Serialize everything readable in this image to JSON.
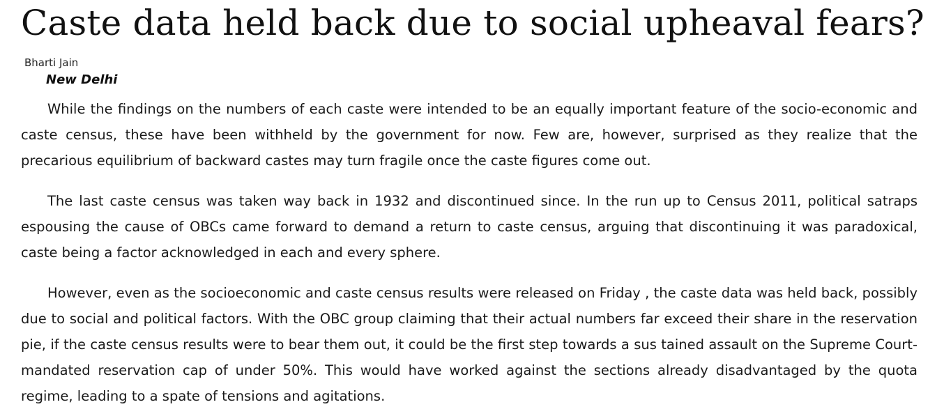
{
  "article": {
    "headline": "Caste data held back due to social upheaval fears?",
    "byline": "Bharti Jain",
    "dateline": "New Delhi",
    "paragraphs": [
      "While the findings on the numbers of each caste were intended to be an equally important feature of the socio-economic and caste census, these have been withheld by the government for now. Few are, however, surprised as they realize that the precarious equilibrium of backward castes may turn fragile once the caste figures come out.",
      "The last caste census was taken way back in 1932 and discontinued since. In the run up to Census 2011, political satraps espousing the cause of OBCs came forward to demand a return to caste census, arguing that discontinuing it was paradoxical, caste being a factor acknowledged in each and every sphere.",
      "However, even as the socioeconomic and caste census results were released on Friday , the caste data was held back, possibly due to social and political factors. With the OBC group claiming that their actual numbers far exceed their share in the reservation pie, if the caste census results were to bear them out, it could be the first step towards a sus tained assault on the Supreme Court-mandated reservation cap of under 50%. This would have worked against the sections already disadvantaged by the quota regime, leading to a spate of tensions and agitations."
    ]
  }
}
